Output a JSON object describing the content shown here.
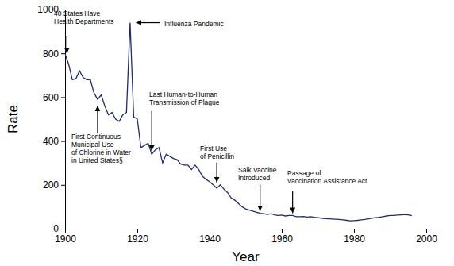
{
  "chart_data": {
    "type": "line",
    "x_label": "Year",
    "y_label": "Rate",
    "x": [
      1900,
      1901,
      1902,
      1903,
      1904,
      1905,
      1906,
      1907,
      1908,
      1909,
      1910,
      1911,
      1912,
      1913,
      1914,
      1915,
      1916,
      1917,
      1918,
      1919,
      1920,
      1921,
      1922,
      1923,
      1924,
      1925,
      1926,
      1927,
      1928,
      1929,
      1930,
      1931,
      1932,
      1933,
      1934,
      1935,
      1936,
      1937,
      1938,
      1939,
      1940,
      1941,
      1942,
      1943,
      1944,
      1945,
      1946,
      1947,
      1948,
      1949,
      1950,
      1951,
      1952,
      1953,
      1954,
      1955,
      1956,
      1957,
      1958,
      1959,
      1960,
      1961,
      1962,
      1963,
      1964,
      1965,
      1966,
      1967,
      1968,
      1969,
      1970,
      1971,
      1972,
      1973,
      1974,
      1975,
      1976,
      1977,
      1978,
      1979,
      1980,
      1981,
      1982,
      1983,
      1984,
      1985,
      1986,
      1987,
      1988,
      1989,
      1990,
      1991,
      1992,
      1993,
      1994,
      1995,
      1996
    ],
    "values": [
      797,
      750,
      680,
      685,
      720,
      690,
      680,
      680,
      620,
      590,
      610,
      560,
      520,
      530,
      500,
      490,
      520,
      530,
      940,
      510,
      500,
      370,
      380,
      390,
      340,
      360,
      370,
      300,
      340,
      330,
      320,
      315,
      295,
      290,
      290,
      270,
      290,
      270,
      240,
      225,
      215,
      200,
      185,
      200,
      180,
      165,
      140,
      130,
      115,
      100,
      90,
      85,
      80,
      75,
      70,
      68,
      65,
      68,
      63,
      60,
      62,
      58,
      60,
      60,
      55,
      55,
      56,
      53,
      55,
      52,
      50,
      48,
      46,
      45,
      44,
      43,
      42,
      40,
      38,
      36,
      37,
      38,
      40,
      42,
      45,
      48,
      50,
      52,
      55,
      58,
      60,
      60,
      62,
      63,
      64,
      63,
      59
    ],
    "color": "#1f2d6b",
    "xlim": [
      1900,
      2000
    ],
    "xticks": [
      1900,
      1920,
      1940,
      1960,
      1980,
      2000
    ],
    "ylim": [
      0,
      1000
    ],
    "yticks": [
      0,
      200,
      400,
      600,
      800,
      1000
    ],
    "grid": false,
    "annotations": [
      {
        "text": [
          "40 States Have",
          "Health Departments"
        ],
        "x": 1900.5,
        "y": 790
      },
      {
        "text": [
          "Influenza Pandemic"
        ],
        "x": 1919,
        "y": 940
      },
      {
        "text": [
          "First Continuous",
          "Municipal Use",
          "of Chlorine in Water",
          "in United States§"
        ],
        "x": 1909,
        "y": 572
      },
      {
        "text": [
          "Last Human-to-Human",
          "Transmission of Plague"
        ],
        "x": 1924,
        "y": 345
      },
      {
        "text": [
          "First Use",
          "of Penicillin"
        ],
        "x": 1942,
        "y": 200
      },
      {
        "text": [
          "Salk Vaccine",
          "Introduced"
        ],
        "x": 1954,
        "y": 70
      },
      {
        "text": [
          "Passage of",
          "Vaccination Assistance Act"
        ],
        "x": 1963,
        "y": 60
      }
    ]
  }
}
